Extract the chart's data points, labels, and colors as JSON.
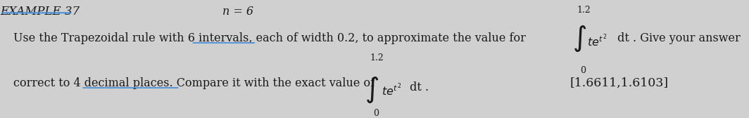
{
  "background_color": "#d0d0d0",
  "title_text": "EXAMPLE 37",
  "n_text": "n = 6",
  "line1_prefix": "Use the Trapezoidal rule with ",
  "line1_underlined": "6 intervals",
  "line1_suffix": ", each of width 0.2, to approximate the value for",
  "integral1_lower": "0",
  "integral1_upper": "1.2",
  "integral1_dt": " dt . Give your answer",
  "line2_prefix": "correct to ",
  "line2_underlined": "4 decimal places",
  "line2_suffix": ". Compare it with the exact value of",
  "integral2_lower": "0",
  "integral2_upper": "1.2",
  "integral2_dt": " dt .",
  "answer": "[1.6611,1.6103]",
  "underline_color": "#4a90d9",
  "text_color": "#1a1a1a",
  "font_size_main": 11.5,
  "font_size_title": 12,
  "font_size_small": 9,
  "font_size_integral": 20
}
